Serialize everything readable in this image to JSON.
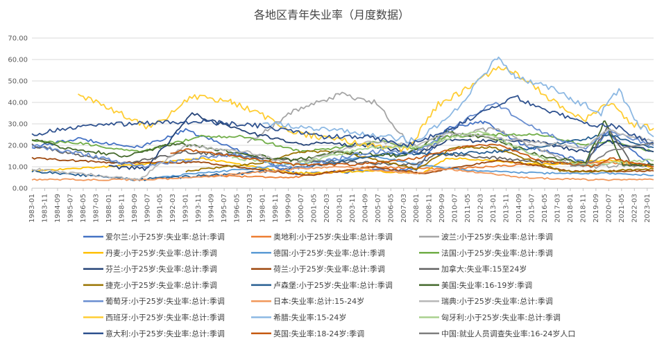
{
  "chart_data": {
    "type": "line",
    "title": "各地区青年失业率（月度数据）",
    "xlabel": "",
    "ylabel": "",
    "ylim": [
      0,
      70
    ],
    "yticks": [
      "0.00",
      "10.00",
      "20.00",
      "30.00",
      "40.00",
      "50.00",
      "60.00",
      "70.00"
    ],
    "x_start": "1983-01",
    "x_end": "2023-06",
    "x_ticks": [
      "1983-01",
      "1983-11",
      "1984-09",
      "1985-07",
      "1986-05",
      "1987-03",
      "1988-01",
      "1988-11",
      "1989-09",
      "1990-07",
      "1991-05",
      "1992-03",
      "1993-01",
      "1993-11",
      "1994-09",
      "1995-07",
      "1996-05",
      "1997-03",
      "1998-01",
      "1998-11",
      "1999-09",
      "2000-07",
      "2001-05",
      "2002-03",
      "2003-01",
      "2003-11",
      "2004-09",
      "2005-07",
      "2006-05",
      "2007-03",
      "2008-01",
      "2008-11",
      "2009-09",
      "2010-07",
      "2011-05",
      "2012-03",
      "2013-01",
      "2013-11",
      "2014-09",
      "2015-07",
      "2016-05",
      "2017-03",
      "2018-01",
      "2018-11",
      "2019-09",
      "2020-07",
      "2021-05",
      "2022-03",
      "2023-01"
    ],
    "grid": true,
    "legend_position": "bottom",
    "series": [
      {
        "name": "爱尔兰:小于25岁:失业率:总计:季调",
        "color": "#4472C4",
        "points": [
          [
            "1983-01",
            19
          ],
          [
            "1986-01",
            23
          ],
          [
            "1990-01",
            19
          ],
          [
            "1993-01",
            27
          ],
          [
            "1996-01",
            19
          ],
          [
            "2000-01",
            7
          ],
          [
            "2005-01",
            8
          ],
          [
            "2008-01",
            9
          ],
          [
            "2010-01",
            28
          ],
          [
            "2012-06",
            31
          ],
          [
            "2015-01",
            20
          ],
          [
            "2019-01",
            12
          ],
          [
            "2020-06",
            26
          ],
          [
            "2023-06",
            10
          ]
        ]
      },
      {
        "name": "奥地利:小于25岁:失业率:总计:季调",
        "color": "#ED7D31",
        "points": [
          [
            "1994-01",
            6
          ],
          [
            "2000-01",
            5
          ],
          [
            "2005-01",
            10
          ],
          [
            "2010-01",
            9
          ],
          [
            "2015-01",
            11
          ],
          [
            "2020-06",
            12
          ],
          [
            "2023-06",
            10
          ]
        ]
      },
      {
        "name": "波兰:小于25岁:失业率:总计:季调",
        "color": "#A5A5A5",
        "points": [
          [
            "1997-01",
            21
          ],
          [
            "1999-01",
            31
          ],
          [
            "2000-01",
            36
          ],
          [
            "2002-06",
            42
          ],
          [
            "2003-01",
            44
          ],
          [
            "2004-06",
            41
          ],
          [
            "2005-06",
            40
          ],
          [
            "2006-06",
            30
          ],
          [
            "2007-06",
            22
          ],
          [
            "2008-06",
            17
          ],
          [
            "2010-01",
            24
          ],
          [
            "2013-01",
            28
          ],
          [
            "2016-01",
            18
          ],
          [
            "2019-01",
            10
          ],
          [
            "2023-06",
            11
          ]
        ]
      },
      {
        "name": "丹麦:小于25岁:失业率:总计:季调",
        "color": "#FFC000",
        "points": [
          [
            "1983-01",
            8
          ],
          [
            "1990-01",
            11
          ],
          [
            "1994-01",
            14
          ],
          [
            "2000-01",
            7
          ],
          [
            "2005-01",
            8
          ],
          [
            "2008-06",
            7
          ],
          [
            "2010-01",
            14
          ],
          [
            "2013-01",
            13
          ],
          [
            "2016-01",
            11
          ],
          [
            "2020-06",
            13
          ],
          [
            "2023-06",
            10
          ]
        ]
      },
      {
        "name": "德国:小于25岁:失业率:总计:季调",
        "color": "#5B9BD5",
        "points": [
          [
            "1991-01",
            5
          ],
          [
            "1997-01",
            9
          ],
          [
            "2005-06",
            15
          ],
          [
            "2008-01",
            11
          ],
          [
            "2012-01",
            8
          ],
          [
            "2016-01",
            7
          ],
          [
            "2020-06",
            7
          ],
          [
            "2023-06",
            6
          ]
        ]
      },
      {
        "name": "法国:小于25岁:失业率:总计:季调",
        "color": "#70AD47",
        "points": [
          [
            "1983-01",
            22
          ],
          [
            "1986-01",
            21
          ],
          [
            "1990-01",
            17
          ],
          [
            "1994-01",
            24
          ],
          [
            "1997-01",
            24
          ],
          [
            "2000-06",
            17
          ],
          [
            "2003-01",
            19
          ],
          [
            "2006-01",
            22
          ],
          [
            "2008-01",
            18
          ],
          [
            "2010-01",
            24
          ],
          [
            "2013-01",
            25
          ],
          [
            "2016-01",
            25
          ],
          [
            "2019-01",
            20
          ],
          [
            "2020-06",
            22
          ],
          [
            "2023-06",
            17
          ]
        ]
      },
      {
        "name": "芬兰:小于25岁:失业率:总计:季调",
        "color": "#264478",
        "points": [
          [
            "1988-01",
            10
          ],
          [
            "1990-06",
            9
          ],
          [
            "1993-06",
            35
          ],
          [
            "1996-01",
            28
          ],
          [
            "2000-01",
            21
          ],
          [
            "2005-01",
            20
          ],
          [
            "2008-01",
            16
          ],
          [
            "2010-01",
            22
          ],
          [
            "2015-06",
            22
          ],
          [
            "2019-01",
            17
          ],
          [
            "2020-06",
            22
          ],
          [
            "2023-06",
            17
          ]
        ]
      },
      {
        "name": "荷兰:小于25岁:失业率:总计:季调",
        "color": "#9E480E",
        "points": [
          [
            "1983-01",
            14
          ],
          [
            "1988-01",
            12
          ],
          [
            "1994-01",
            12
          ],
          [
            "2001-01",
            6
          ],
          [
            "2005-01",
            10
          ],
          [
            "2008-06",
            7
          ],
          [
            "2013-06",
            13
          ],
          [
            "2018-01",
            8
          ],
          [
            "2023-06",
            8
          ]
        ]
      },
      {
        "name": "加拿大:失业率:15至24岁",
        "color": "#636363",
        "points": [
          [
            "1983-01",
            20
          ],
          [
            "1989-01",
            11
          ],
          [
            "1993-01",
            17
          ],
          [
            "2000-01",
            13
          ],
          [
            "2008-01",
            11
          ],
          [
            "2009-06",
            16
          ],
          [
            "2015-01",
            13
          ],
          [
            "2019-01",
            11
          ],
          [
            "2020-06",
            29
          ],
          [
            "2022-01",
            11
          ],
          [
            "2023-06",
            11
          ]
        ]
      },
      {
        "name": "捷克:小于25岁:失业率:总计:季调",
        "color": "#997300",
        "points": [
          [
            "1993-01",
            8
          ],
          [
            "1998-01",
            12
          ],
          [
            "2000-06",
            17
          ],
          [
            "2003-01",
            17
          ],
          [
            "2008-01",
            9
          ],
          [
            "2010-06",
            19
          ],
          [
            "2013-01",
            19
          ],
          [
            "2017-06",
            8
          ],
          [
            "2020-06",
            8
          ],
          [
            "2023-06",
            9
          ]
        ]
      },
      {
        "name": "卢森堡:小于25岁:失业率:总计:季调",
        "color": "#255E91",
        "points": [
          [
            "1983-01",
            8
          ],
          [
            "1990-01",
            4
          ],
          [
            "1997-01",
            7
          ],
          [
            "2002-01",
            11
          ],
          [
            "2006-01",
            16
          ],
          [
            "2010-06",
            16
          ],
          [
            "2015-01",
            18
          ],
          [
            "2020-06",
            25
          ],
          [
            "2023-06",
            19
          ]
        ]
      },
      {
        "name": "美国:失业率:16-19岁:季调",
        "color": "#43682B",
        "points": [
          [
            "1983-01",
            23
          ],
          [
            "1985-01",
            19
          ],
          [
            "1989-01",
            15
          ],
          [
            "1992-06",
            21
          ],
          [
            "1997-01",
            16
          ],
          [
            "2000-01",
            13
          ],
          [
            "2003-01",
            17
          ],
          [
            "2007-01",
            15
          ],
          [
            "2010-01",
            26
          ],
          [
            "2013-01",
            23
          ],
          [
            "2016-01",
            15
          ],
          [
            "2019-01",
            12
          ],
          [
            "2020-04",
            32
          ],
          [
            "2021-06",
            10
          ],
          [
            "2023-06",
            11
          ]
        ]
      },
      {
        "name": "葡萄牙:小于25岁:失业率:总计:季调",
        "color": "#698ED0",
        "points": [
          [
            "1983-01",
            20
          ],
          [
            "1987-01",
            15
          ],
          [
            "1990-01",
            10
          ],
          [
            "1993-01",
            13
          ],
          [
            "1996-01",
            16
          ],
          [
            "2000-01",
            9
          ],
          [
            "2005-01",
            17
          ],
          [
            "2008-01",
            17
          ],
          [
            "2013-01",
            40
          ],
          [
            "2016-01",
            27
          ],
          [
            "2019-01",
            18
          ],
          [
            "2020-06",
            27
          ],
          [
            "2023-06",
            20
          ]
        ]
      },
      {
        "name": "日本:失业率:总计:15-24岁",
        "color": "#F1975A",
        "points": [
          [
            "1983-01",
            4
          ],
          [
            "1990-01",
            4
          ],
          [
            "1994-01",
            5
          ],
          [
            "2000-01",
            9
          ],
          [
            "2003-01",
            10
          ],
          [
            "2008-01",
            7
          ],
          [
            "2010-01",
            9
          ],
          [
            "2015-01",
            5
          ],
          [
            "2019-01",
            4
          ],
          [
            "2023-06",
            4
          ]
        ]
      },
      {
        "name": "瑞典:小于25岁:失业率:总计:季调",
        "color": "#B7B7B7",
        "points": [
          [
            "1983-01",
            9
          ],
          [
            "1990-01",
            4
          ],
          [
            "1993-01",
            20
          ],
          [
            "1997-01",
            17
          ],
          [
            "2000-01",
            11
          ],
          [
            "2005-01",
            22
          ],
          [
            "2008-01",
            20
          ],
          [
            "2010-01",
            26
          ],
          [
            "2015-01",
            22
          ],
          [
            "2019-01",
            19
          ],
          [
            "2020-06",
            27
          ],
          [
            "2023-06",
            22
          ]
        ]
      },
      {
        "name": "西班牙:小于25岁:失业率:总计:季调",
        "color": "#FFCD33",
        "points": [
          [
            "1986-01",
            44
          ],
          [
            "1990-06",
            29
          ],
          [
            "1991-06",
            31
          ],
          [
            "1993-06",
            43
          ],
          [
            "1994-06",
            42
          ],
          [
            "1996-01",
            40
          ],
          [
            "1998-01",
            34
          ],
          [
            "2000-01",
            26
          ],
          [
            "2005-01",
            20
          ],
          [
            "2007-06",
            18
          ],
          [
            "2009-06",
            39
          ],
          [
            "2011-01",
            45
          ],
          [
            "2013-03",
            56
          ],
          [
            "2014-06",
            54
          ],
          [
            "2017-01",
            40
          ],
          [
            "2019-01",
            32
          ],
          [
            "2020-09",
            40
          ],
          [
            "2022-01",
            30
          ],
          [
            "2023-06",
            28
          ]
        ]
      },
      {
        "name": "希腊:失业率:15-24岁",
        "color": "#8CB8E3",
        "points": [
          [
            "1998-01",
            30
          ],
          [
            "2000-01",
            29
          ],
          [
            "2004-01",
            26
          ],
          [
            "2008-01",
            22
          ],
          [
            "2010-01",
            32
          ],
          [
            "2012-06",
            53
          ],
          [
            "2013-05",
            62
          ],
          [
            "2014-06",
            52
          ],
          [
            "2016-06",
            48
          ],
          [
            "2018-01",
            42
          ],
          [
            "2020-01",
            35
          ],
          [
            "2021-03",
            46
          ],
          [
            "2022-06",
            30
          ],
          [
            "2023-06",
            24
          ]
        ]
      },
      {
        "name": "匈牙利:小于25岁:失业率:总计:季调",
        "color": "#A9D18E",
        "points": [
          [
            "1996-01",
            14
          ],
          [
            "2000-01",
            11
          ],
          [
            "2005-01",
            19
          ],
          [
            "2008-01",
            19
          ],
          [
            "2012-01",
            27
          ],
          [
            "2014-01",
            21
          ],
          [
            "2016-06",
            13
          ],
          [
            "2019-01",
            11
          ],
          [
            "2023-06",
            13
          ]
        ]
      },
      {
        "name": "意大利:小于25岁:失业率:总计:季调",
        "color": "#2F528F",
        "points": [
          [
            "1983-01",
            25
          ],
          [
            "1987-01",
            30
          ],
          [
            "1989-01",
            30
          ],
          [
            "1994-01",
            31
          ],
          [
            "1998-01",
            29
          ],
          [
            "2002-01",
            24
          ],
          [
            "2005-01",
            24
          ],
          [
            "2007-06",
            20
          ],
          [
            "2010-01",
            27
          ],
          [
            "2012-06",
            36
          ],
          [
            "2014-06",
            43
          ],
          [
            "2016-01",
            37
          ],
          [
            "2018-06",
            32
          ],
          [
            "2019-06",
            29
          ],
          [
            "2020-09",
            30
          ],
          [
            "2022-01",
            25
          ],
          [
            "2023-06",
            21
          ]
        ]
      },
      {
        "name": "英国:失业率:18-24岁:季调",
        "color": "#C55A11",
        "points": [
          [
            "1992-01",
            16
          ],
          [
            "1993-01",
            18
          ],
          [
            "1996-01",
            15
          ],
          [
            "2000-01",
            11
          ],
          [
            "2004-01",
            11
          ],
          [
            "2008-01",
            14
          ],
          [
            "2011-06",
            20
          ],
          [
            "2013-06",
            20
          ],
          [
            "2016-01",
            13
          ],
          [
            "2019-06",
            10
          ],
          [
            "2020-09",
            14
          ],
          [
            "2023-06",
            10
          ]
        ]
      },
      {
        "name": "中国:就业人员调查失业率:16-24岁人口",
        "color": "#7F7F7F",
        "points": [
          [
            "2018-01",
            10
          ],
          [
            "2019-01",
            11
          ],
          [
            "2019-07",
            13
          ],
          [
            "2020-07",
            17
          ],
          [
            "2021-07",
            19
          ],
          [
            "2022-07",
            20
          ],
          [
            "2023-06",
            21
          ]
        ]
      }
    ]
  }
}
